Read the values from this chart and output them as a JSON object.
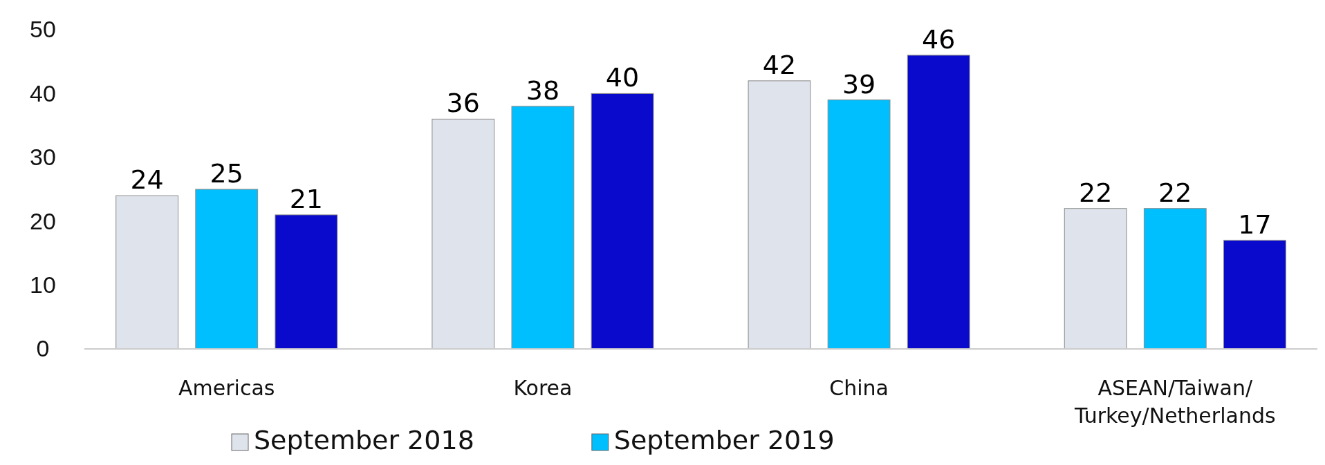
{
  "chart_data": {
    "type": "bar",
    "categories": [
      "Americas",
      "Korea",
      "China",
      "ASEAN/Taiwan/\nTurkey/Netherlands"
    ],
    "series": [
      {
        "name": "September 2018",
        "color": "#dfe4ec",
        "values": [
          24,
          36,
          42,
          22
        ]
      },
      {
        "name": "September 2019",
        "color": "#00bfff",
        "values": [
          25,
          38,
          39,
          22
        ]
      },
      {
        "color": "#0a0acc",
        "values": [
          21,
          40,
          46,
          17
        ]
      }
    ],
    "ylim": [
      0,
      50
    ],
    "yticks": [
      0,
      10,
      20,
      30,
      40,
      50
    ],
    "grid": false,
    "legend": "bottom",
    "data_labels": true
  }
}
